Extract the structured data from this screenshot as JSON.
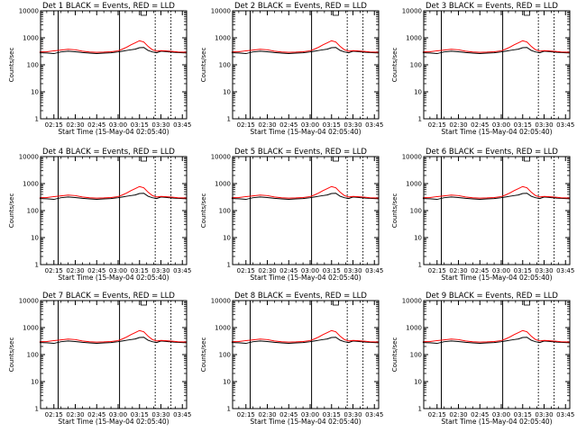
{
  "chart_data": [
    {
      "type": "line",
      "title": "Det 1  BLACK = Events, RED = LLD",
      "ylabel": "Counts/sec",
      "xlabel": "Start Time (15-May-04 02:05:40)"
    },
    {
      "type": "line",
      "title": "Det 2  BLACK = Events, RED = LLD",
      "ylabel": "Counts/sec",
      "xlabel": "Start Time (15-May-04 02:05:40)"
    },
    {
      "type": "line",
      "title": "Det 3  BLACK = Events, RED = LLD",
      "ylabel": "Counts/sec",
      "xlabel": "Start Time (15-May-04 02:05:40)"
    },
    {
      "type": "line",
      "title": "Det 4  BLACK = Events, RED = LLD",
      "ylabel": "Counts/sec",
      "xlabel": "Start Time (15-May-04 02:05:40)"
    },
    {
      "type": "line",
      "title": "Det 5  BLACK = Events, RED = LLD",
      "ylabel": "Counts/sec",
      "xlabel": "Start Time (15-May-04 02:05:40)"
    },
    {
      "type": "line",
      "title": "Det 6  BLACK = Events, RED = LLD",
      "ylabel": "Counts/sec",
      "xlabel": "Start Time (15-May-04 02:05:40)"
    },
    {
      "type": "line",
      "title": "Det 7  BLACK = Events, RED = LLD",
      "ylabel": "Counts/sec",
      "xlabel": "Start Time (15-May-04 02:05:40)"
    },
    {
      "type": "line",
      "title": "Det 8  BLACK = Events, RED = LLD",
      "ylabel": "Counts/sec",
      "xlabel": "Start Time (15-May-04 02:05:40)"
    },
    {
      "type": "line",
      "title": "Det 9  BLACK = Events, RED = LLD",
      "ylabel": "Counts/sec",
      "xlabel": "Start Time (15-May-04 02:05:40)"
    }
  ],
  "shared": {
    "y_scale": "log",
    "ylim": [
      1,
      10000
    ],
    "y_ticks": [
      1,
      10,
      100,
      1000,
      10000
    ],
    "y_tick_labels": [
      "1",
      "10",
      "100",
      "1000",
      "10000"
    ],
    "xlim": [
      "02:05:40",
      "03:48:00"
    ],
    "x_ticks": [
      "02:15",
      "02:30",
      "02:45",
      "03:00",
      "03:15",
      "03:30",
      "03:45"
    ],
    "solid_vlines": [
      "02:18",
      "03:01"
    ],
    "dotted_vlines": [
      "03:26",
      "03:37"
    ],
    "x": [
      "02:05",
      "02:10",
      "02:15",
      "02:20",
      "02:25",
      "02:30",
      "02:35",
      "02:40",
      "02:45",
      "02:50",
      "02:55",
      "03:00",
      "03:03",
      "03:06",
      "03:09",
      "03:12",
      "03:15",
      "03:18",
      "03:21",
      "03:24",
      "03:27",
      "03:30",
      "03:33",
      "03:36",
      "03:39",
      "03:42",
      "03:45",
      "03:48"
    ],
    "series": [
      {
        "name": "Events",
        "color": "#000000",
        "values": [
          280,
          275,
          260,
          300,
          320,
          305,
          285,
          272,
          262,
          270,
          280,
          300,
          320,
          340,
          360,
          380,
          430,
          440,
          340,
          300,
          280,
          320,
          310,
          300,
          290,
          285,
          280,
          275
        ]
      },
      {
        "name": "LLD",
        "color": "#ff0000",
        "values": [
          300,
          305,
          330,
          350,
          375,
          360,
          320,
          300,
          290,
          295,
          305,
          330,
          380,
          450,
          550,
          650,
          780,
          700,
          480,
          360,
          320,
          335,
          330,
          320,
          310,
          300,
          295,
          290
        ]
      }
    ]
  }
}
